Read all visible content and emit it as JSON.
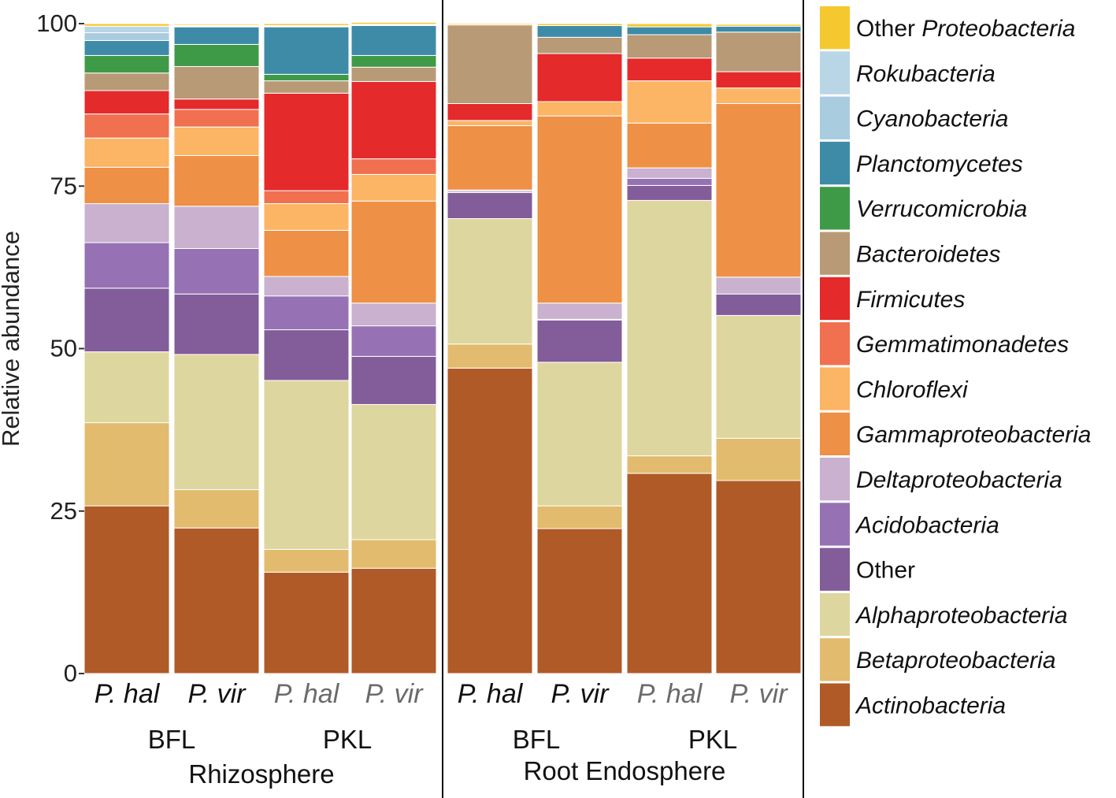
{
  "chart_data": {
    "type": "bar",
    "stacked": true,
    "title": "",
    "xlabel": "",
    "ylabel": "Relative abundance",
    "ylim": [
      0,
      100
    ],
    "yticks": [
      "0",
      "25",
      "50",
      "75",
      "100"
    ],
    "categories": [
      "P. hal",
      "P. vir",
      "P. hal",
      "P. vir",
      "P. hal",
      "P. vir",
      "P. hal",
      "P. vir"
    ],
    "site_groups": [
      "BFL",
      "PKL",
      "BFL",
      "PKL"
    ],
    "compartments": [
      "Rhizosphere",
      "Root Endosphere"
    ],
    "series": [
      {
        "name": "Actinobacteria",
        "color": "#B05A28",
        "values": [
          25.8,
          22.4,
          15.6,
          16.2,
          47.0,
          22.3,
          30.8,
          29.7
        ]
      },
      {
        "name": "Betaproteobacteria",
        "color": "#E2BB6E",
        "values": [
          12.8,
          5.9,
          3.5,
          4.4,
          3.7,
          3.5,
          2.7,
          6.5
        ]
      },
      {
        "name": "Alphaproteobacteria",
        "color": "#DED69F",
        "values": [
          10.9,
          20.8,
          26.0,
          20.8,
          19.3,
          22.1,
          39.3,
          18.9
        ]
      },
      {
        "name": "Other",
        "color": "#825D9A",
        "values": [
          9.8,
          9.3,
          7.8,
          7.4,
          4.0,
          6.5,
          2.3,
          3.3
        ]
      },
      {
        "name": "Acidobacteria",
        "color": "#9672B4",
        "values": [
          7.0,
          7.0,
          5.2,
          4.7,
          0.2,
          0.1,
          1.1,
          0.0
        ]
      },
      {
        "name": "Deltaproteobacteria",
        "color": "#C9B1CF",
        "values": [
          6.0,
          6.5,
          3.0,
          3.5,
          0.2,
          2.5,
          1.6,
          2.6
        ]
      },
      {
        "name": "Gammaproteobacteria",
        "color": "#EE9046",
        "values": [
          5.6,
          7.8,
          7.1,
          15.7,
          9.9,
          28.8,
          6.9,
          26.7
        ]
      },
      {
        "name": "Chloroflexi",
        "color": "#FBB564",
        "values": [
          4.5,
          4.4,
          4.1,
          4.1,
          0.8,
          2.2,
          6.5,
          2.4
        ]
      },
      {
        "name": "Gemmatimonadetes",
        "color": "#F07050",
        "values": [
          3.7,
          2.7,
          2.0,
          2.4,
          0.0,
          0.0,
          0.0,
          0.0
        ]
      },
      {
        "name": "Firmicutes",
        "color": "#E42A2A",
        "values": [
          3.6,
          1.6,
          15.0,
          11.9,
          2.6,
          7.4,
          3.5,
          2.5
        ]
      },
      {
        "name": "Bacteroidetes",
        "color": "#B89A76",
        "values": [
          2.7,
          5.0,
          1.9,
          2.2,
          12.1,
          2.5,
          3.6,
          6.1
        ]
      },
      {
        "name": "Verrucomicrobia",
        "color": "#3F9A48",
        "values": [
          2.7,
          3.4,
          1.0,
          1.8,
          0.0,
          0.0,
          0.0,
          0.0
        ]
      },
      {
        "name": "Planctomycetes",
        "color": "#3E8BA8",
        "values": [
          2.3,
          2.7,
          7.3,
          4.6,
          0.0,
          1.8,
          1.2,
          0.9
        ]
      },
      {
        "name": "Cyanobacteria",
        "color": "#A9CCDF",
        "values": [
          1.2,
          0.1,
          0.1,
          0.1,
          0.0,
          0.0,
          0.0,
          0.0
        ]
      },
      {
        "name": "Rokubacteria",
        "color": "#B8D6E6",
        "values": [
          1.0,
          0.1,
          0.1,
          0.1,
          0.0,
          0.0,
          0.0,
          0.0
        ]
      },
      {
        "name": "Other Proteobacteria",
        "color": "#F6C830",
        "values": [
          0.4,
          0.2,
          0.3,
          0.3,
          0.2,
          0.3,
          0.5,
          0.3
        ]
      }
    ],
    "legend": {
      "placement": "right",
      "entries": [
        {
          "prefix": "Other ",
          "italic": "Proteobacteria",
          "color": "#F6C830"
        },
        {
          "prefix": "",
          "italic": "Rokubacteria",
          "color": "#B8D6E6"
        },
        {
          "prefix": "",
          "italic": "Cyanobacteria",
          "color": "#A9CCDF"
        },
        {
          "prefix": "",
          "italic": "Planctomycetes",
          "color": "#3E8BA8"
        },
        {
          "prefix": "",
          "italic": "Verrucomicrobia",
          "color": "#3F9A48"
        },
        {
          "prefix": "",
          "italic": "Bacteroidetes",
          "color": "#B89A76"
        },
        {
          "prefix": "",
          "italic": "Firmicutes",
          "color": "#E42A2A"
        },
        {
          "prefix": "",
          "italic": "Gemmatimonadetes",
          "color": "#F07050"
        },
        {
          "prefix": "",
          "italic": "Chloroflexi",
          "color": "#FBB564"
        },
        {
          "prefix": "",
          "italic": "Gammaproteobacteria",
          "color": "#EE9046"
        },
        {
          "prefix": "",
          "italic": "Deltaproteobacteria",
          "color": "#C9B1CF"
        },
        {
          "prefix": "",
          "italic": "Acidobacteria",
          "color": "#9672B4"
        },
        {
          "prefix": "Other",
          "italic": "",
          "color": "#825D9A"
        },
        {
          "prefix": "",
          "italic": "Alphaproteobacteria",
          "color": "#DED69F"
        },
        {
          "prefix": "",
          "italic": "Betaproteobacteria",
          "color": "#E2BB6E"
        },
        {
          "prefix": "",
          "italic": "Actinobacteria",
          "color": "#B05A28"
        }
      ]
    }
  }
}
